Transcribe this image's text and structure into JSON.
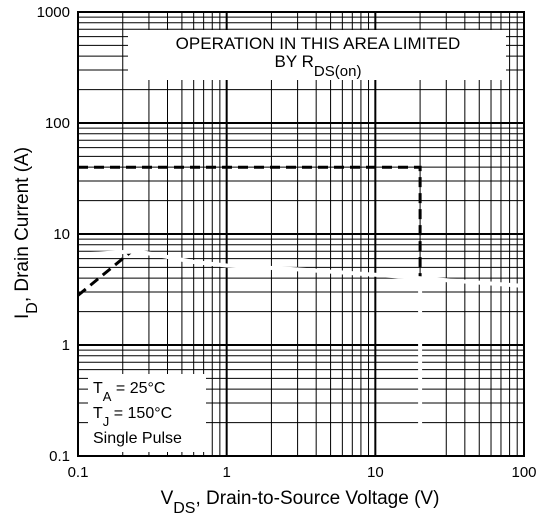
{
  "chart_data": {
    "type": "line",
    "x_scale": "log",
    "y_scale": "log",
    "xlim": [
      0.1,
      100
    ],
    "ylim": [
      0.1,
      1000
    ],
    "x_ticks": [
      "0.1",
      "1",
      "10",
      "100"
    ],
    "y_ticks": [
      "0.1",
      "1",
      "10",
      "100",
      "1000"
    ],
    "xlabel": {
      "main": "V",
      "sub": "DS",
      "rest": ", Drain-to-Source Voltage (V)"
    },
    "ylabel": {
      "main": "I",
      "sub": "D",
      "rest": ", Drain Current (A)"
    },
    "grid": true,
    "annotation": {
      "line1": "OPERATION IN THIS AREA LIMITED",
      "line2_main": "BY R",
      "line2_sub": "DS(on)"
    },
    "conditions": {
      "ta_main": "T",
      "ta_sub": "A",
      "ta_rest": " = 25°C",
      "tj_main": "T",
      "tj_sub": "J",
      "tj_rest": " = 150°C",
      "pulse": "Single Pulse"
    },
    "series": [
      {
        "style": "dashed",
        "color": "#000000",
        "x": [
          0.1,
          0.23
        ],
        "y": [
          2.8,
          7.0
        ]
      },
      {
        "style": "dashed",
        "color": "#000000",
        "x": [
          0.1,
          20,
          20
        ],
        "y": [
          40,
          40,
          4.0
        ]
      },
      {
        "style": "solid",
        "color": "#ffffff",
        "x": [
          0.1,
          0.25,
          0.6,
          1,
          3,
          10,
          20,
          100
        ],
        "y": [
          6.5,
          7.0,
          5.6,
          5.2,
          4.8,
          4.3,
          4.0,
          3.4
        ]
      },
      {
        "style": "solid",
        "color": "#ffffff",
        "x": [
          20,
          20
        ],
        "y": [
          4.0,
          0.1
        ]
      }
    ]
  }
}
